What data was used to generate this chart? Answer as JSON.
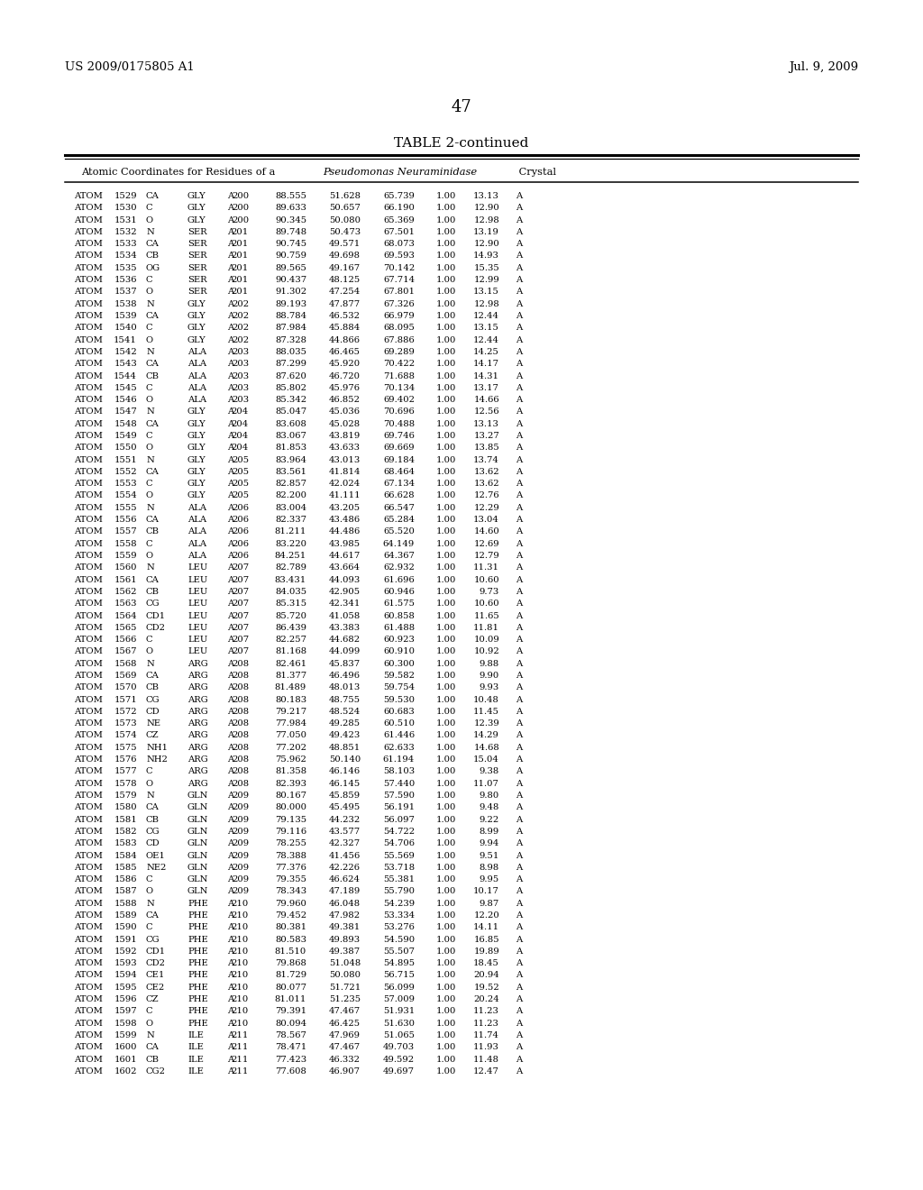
{
  "header_left": "US 2009/0175805 A1",
  "header_right": "Jul. 9, 2009",
  "page_number": "47",
  "table_title": "TABLE 2-continued",
  "rows": [
    [
      "ATOM",
      "1529",
      "CA",
      "GLY",
      "A",
      "200",
      "88.555",
      "51.628",
      "65.739",
      "1.00",
      "13.13",
      "A"
    ],
    [
      "ATOM",
      "1530",
      "C",
      "GLY",
      "A",
      "200",
      "89.633",
      "50.657",
      "66.190",
      "1.00",
      "12.90",
      "A"
    ],
    [
      "ATOM",
      "1531",
      "O",
      "GLY",
      "A",
      "200",
      "90.345",
      "50.080",
      "65.369",
      "1.00",
      "12.98",
      "A"
    ],
    [
      "ATOM",
      "1532",
      "N",
      "SER",
      "A",
      "201",
      "89.748",
      "50.473",
      "67.501",
      "1.00",
      "13.19",
      "A"
    ],
    [
      "ATOM",
      "1533",
      "CA",
      "SER",
      "A",
      "201",
      "90.745",
      "49.571",
      "68.073",
      "1.00",
      "12.90",
      "A"
    ],
    [
      "ATOM",
      "1534",
      "CB",
      "SER",
      "A",
      "201",
      "90.759",
      "49.698",
      "69.593",
      "1.00",
      "14.93",
      "A"
    ],
    [
      "ATOM",
      "1535",
      "OG",
      "SER",
      "A",
      "201",
      "89.565",
      "49.167",
      "70.142",
      "1.00",
      "15.35",
      "A"
    ],
    [
      "ATOM",
      "1536",
      "C",
      "SER",
      "A",
      "201",
      "90.437",
      "48.125",
      "67.714",
      "1.00",
      "12.99",
      "A"
    ],
    [
      "ATOM",
      "1537",
      "O",
      "SER",
      "A",
      "201",
      "91.302",
      "47.254",
      "67.801",
      "1.00",
      "13.15",
      "A"
    ],
    [
      "ATOM",
      "1538",
      "N",
      "GLY",
      "A",
      "202",
      "89.193",
      "47.877",
      "67.326",
      "1.00",
      "12.98",
      "A"
    ],
    [
      "ATOM",
      "1539",
      "CA",
      "GLY",
      "A",
      "202",
      "88.784",
      "46.532",
      "66.979",
      "1.00",
      "12.44",
      "A"
    ],
    [
      "ATOM",
      "1540",
      "C",
      "GLY",
      "A",
      "202",
      "87.984",
      "45.884",
      "68.095",
      "1.00",
      "13.15",
      "A"
    ],
    [
      "ATOM",
      "1541",
      "O",
      "GLY",
      "A",
      "202",
      "87.328",
      "44.866",
      "67.886",
      "1.00",
      "12.44",
      "A"
    ],
    [
      "ATOM",
      "1542",
      "N",
      "ALA",
      "A",
      "203",
      "88.035",
      "46.465",
      "69.289",
      "1.00",
      "14.25",
      "A"
    ],
    [
      "ATOM",
      "1543",
      "CA",
      "ALA",
      "A",
      "203",
      "87.299",
      "45.920",
      "70.422",
      "1.00",
      "14.17",
      "A"
    ],
    [
      "ATOM",
      "1544",
      "CB",
      "ALA",
      "A",
      "203",
      "87.620",
      "46.720",
      "71.688",
      "1.00",
      "14.31",
      "A"
    ],
    [
      "ATOM",
      "1545",
      "C",
      "ALA",
      "A",
      "203",
      "85.802",
      "45.976",
      "70.134",
      "1.00",
      "13.17",
      "A"
    ],
    [
      "ATOM",
      "1546",
      "O",
      "ALA",
      "A",
      "203",
      "85.342",
      "46.852",
      "69.402",
      "1.00",
      "14.66",
      "A"
    ],
    [
      "ATOM",
      "1547",
      "N",
      "GLY",
      "A",
      "204",
      "85.047",
      "45.036",
      "70.696",
      "1.00",
      "12.56",
      "A"
    ],
    [
      "ATOM",
      "1548",
      "CA",
      "GLY",
      "A",
      "204",
      "83.608",
      "45.028",
      "70.488",
      "1.00",
      "13.13",
      "A"
    ],
    [
      "ATOM",
      "1549",
      "C",
      "GLY",
      "A",
      "204",
      "83.067",
      "43.819",
      "69.746",
      "1.00",
      "13.27",
      "A"
    ],
    [
      "ATOM",
      "1550",
      "O",
      "GLY",
      "A",
      "204",
      "81.853",
      "43.633",
      "69.669",
      "1.00",
      "13.85",
      "A"
    ],
    [
      "ATOM",
      "1551",
      "N",
      "GLY",
      "A",
      "205",
      "83.964",
      "43.013",
      "69.184",
      "1.00",
      "13.74",
      "A"
    ],
    [
      "ATOM",
      "1552",
      "CA",
      "GLY",
      "A",
      "205",
      "83.561",
      "41.814",
      "68.464",
      "1.00",
      "13.62",
      "A"
    ],
    [
      "ATOM",
      "1553",
      "C",
      "GLY",
      "A",
      "205",
      "82.857",
      "42.024",
      "67.134",
      "1.00",
      "13.62",
      "A"
    ],
    [
      "ATOM",
      "1554",
      "O",
      "GLY",
      "A",
      "205",
      "82.200",
      "41.111",
      "66.628",
      "1.00",
      "12.76",
      "A"
    ],
    [
      "ATOM",
      "1555",
      "N",
      "ALA",
      "A",
      "206",
      "83.004",
      "43.205",
      "66.547",
      "1.00",
      "12.29",
      "A"
    ],
    [
      "ATOM",
      "1556",
      "CA",
      "ALA",
      "A",
      "206",
      "82.337",
      "43.486",
      "65.284",
      "1.00",
      "13.04",
      "A"
    ],
    [
      "ATOM",
      "1557",
      "CB",
      "ALA",
      "A",
      "206",
      "81.211",
      "44.486",
      "65.520",
      "1.00",
      "14.60",
      "A"
    ],
    [
      "ATOM",
      "1558",
      "C",
      "ALA",
      "A",
      "206",
      "83.220",
      "43.985",
      "64.149",
      "1.00",
      "12.69",
      "A"
    ],
    [
      "ATOM",
      "1559",
      "O",
      "ALA",
      "A",
      "206",
      "84.251",
      "44.617",
      "64.367",
      "1.00",
      "12.79",
      "A"
    ],
    [
      "ATOM",
      "1560",
      "N",
      "LEU",
      "A",
      "207",
      "82.789",
      "43.664",
      "62.932",
      "1.00",
      "11.31",
      "A"
    ],
    [
      "ATOM",
      "1561",
      "CA",
      "LEU",
      "A",
      "207",
      "83.431",
      "44.093",
      "61.696",
      "1.00",
      "10.60",
      "A"
    ],
    [
      "ATOM",
      "1562",
      "CB",
      "LEU",
      "A",
      "207",
      "84.035",
      "42.905",
      "60.946",
      "1.00",
      "9.73",
      "A"
    ],
    [
      "ATOM",
      "1563",
      "CG",
      "LEU",
      "A",
      "207",
      "85.315",
      "42.341",
      "61.575",
      "1.00",
      "10.60",
      "A"
    ],
    [
      "ATOM",
      "1564",
      "CD1",
      "LEU",
      "A",
      "207",
      "85.720",
      "41.058",
      "60.858",
      "1.00",
      "11.65",
      "A"
    ],
    [
      "ATOM",
      "1565",
      "CD2",
      "LEU",
      "A",
      "207",
      "86.439",
      "43.383",
      "61.488",
      "1.00",
      "11.81",
      "A"
    ],
    [
      "ATOM",
      "1566",
      "C",
      "LEU",
      "A",
      "207",
      "82.257",
      "44.682",
      "60.923",
      "1.00",
      "10.09",
      "A"
    ],
    [
      "ATOM",
      "1567",
      "O",
      "LEU",
      "A",
      "207",
      "81.168",
      "44.099",
      "60.910",
      "1.00",
      "10.92",
      "A"
    ],
    [
      "ATOM",
      "1568",
      "N",
      "ARG",
      "A",
      "208",
      "82.461",
      "45.837",
      "60.300",
      "1.00",
      "9.88",
      "A"
    ],
    [
      "ATOM",
      "1569",
      "CA",
      "ARG",
      "A",
      "208",
      "81.377",
      "46.496",
      "59.582",
      "1.00",
      "9.90",
      "A"
    ],
    [
      "ATOM",
      "1570",
      "CB",
      "ARG",
      "A",
      "208",
      "81.489",
      "48.013",
      "59.754",
      "1.00",
      "9.93",
      "A"
    ],
    [
      "ATOM",
      "1571",
      "CG",
      "ARG",
      "A",
      "208",
      "80.183",
      "48.755",
      "59.530",
      "1.00",
      "10.48",
      "A"
    ],
    [
      "ATOM",
      "1572",
      "CD",
      "ARG",
      "A",
      "208",
      "79.217",
      "48.524",
      "60.683",
      "1.00",
      "11.45",
      "A"
    ],
    [
      "ATOM",
      "1573",
      "NE",
      "ARG",
      "A",
      "208",
      "77.984",
      "49.285",
      "60.510",
      "1.00",
      "12.39",
      "A"
    ],
    [
      "ATOM",
      "1574",
      "CZ",
      "ARG",
      "A",
      "208",
      "77.050",
      "49.423",
      "61.446",
      "1.00",
      "14.29",
      "A"
    ],
    [
      "ATOM",
      "1575",
      "NH1",
      "ARG",
      "A",
      "208",
      "77.202",
      "48.851",
      "62.633",
      "1.00",
      "14.68",
      "A"
    ],
    [
      "ATOM",
      "1576",
      "NH2",
      "ARG",
      "A",
      "208",
      "75.962",
      "50.140",
      "61.194",
      "1.00",
      "15.04",
      "A"
    ],
    [
      "ATOM",
      "1577",
      "C",
      "ARG",
      "A",
      "208",
      "81.358",
      "46.146",
      "58.103",
      "1.00",
      "9.38",
      "A"
    ],
    [
      "ATOM",
      "1578",
      "O",
      "ARG",
      "A",
      "208",
      "82.393",
      "46.145",
      "57.440",
      "1.00",
      "11.07",
      "A"
    ],
    [
      "ATOM",
      "1579",
      "N",
      "GLN",
      "A",
      "209",
      "80.167",
      "45.859",
      "57.590",
      "1.00",
      "9.80",
      "A"
    ],
    [
      "ATOM",
      "1580",
      "CA",
      "GLN",
      "A",
      "209",
      "80.000",
      "45.495",
      "56.191",
      "1.00",
      "9.48",
      "A"
    ],
    [
      "ATOM",
      "1581",
      "CB",
      "GLN",
      "A",
      "209",
      "79.135",
      "44.232",
      "56.097",
      "1.00",
      "9.22",
      "A"
    ],
    [
      "ATOM",
      "1582",
      "CG",
      "GLN",
      "A",
      "209",
      "79.116",
      "43.577",
      "54.722",
      "1.00",
      "8.99",
      "A"
    ],
    [
      "ATOM",
      "1583",
      "CD",
      "GLN",
      "A",
      "209",
      "78.255",
      "42.327",
      "54.706",
      "1.00",
      "9.94",
      "A"
    ],
    [
      "ATOM",
      "1584",
      "OE1",
      "GLN",
      "A",
      "209",
      "78.388",
      "41.456",
      "55.569",
      "1.00",
      "9.51",
      "A"
    ],
    [
      "ATOM",
      "1585",
      "NE2",
      "GLN",
      "A",
      "209",
      "77.376",
      "42.226",
      "53.718",
      "1.00",
      "8.98",
      "A"
    ],
    [
      "ATOM",
      "1586",
      "C",
      "GLN",
      "A",
      "209",
      "79.355",
      "46.624",
      "55.381",
      "1.00",
      "9.95",
      "A"
    ],
    [
      "ATOM",
      "1587",
      "O",
      "GLN",
      "A",
      "209",
      "78.343",
      "47.189",
      "55.790",
      "1.00",
      "10.17",
      "A"
    ],
    [
      "ATOM",
      "1588",
      "N",
      "PHE",
      "A",
      "210",
      "79.960",
      "46.048",
      "54.239",
      "1.00",
      "9.87",
      "A"
    ],
    [
      "ATOM",
      "1589",
      "CA",
      "PHE",
      "A",
      "210",
      "79.452",
      "47.982",
      "53.334",
      "1.00",
      "12.20",
      "A"
    ],
    [
      "ATOM",
      "1590",
      "C",
      "PHE",
      "A",
      "210",
      "80.381",
      "49.381",
      "53.276",
      "1.00",
      "14.11",
      "A"
    ],
    [
      "ATOM",
      "1591",
      "CG",
      "PHE",
      "A",
      "210",
      "80.583",
      "49.893",
      "54.590",
      "1.00",
      "16.85",
      "A"
    ],
    [
      "ATOM",
      "1592",
      "CD1",
      "PHE",
      "A",
      "210",
      "81.510",
      "49.387",
      "55.507",
      "1.00",
      "19.89",
      "A"
    ],
    [
      "ATOM",
      "1593",
      "CD2",
      "PHE",
      "A",
      "210",
      "79.868",
      "51.048",
      "54.895",
      "1.00",
      "18.45",
      "A"
    ],
    [
      "ATOM",
      "1594",
      "CE1",
      "PHE",
      "A",
      "210",
      "81.729",
      "50.080",
      "56.715",
      "1.00",
      "20.94",
      "A"
    ],
    [
      "ATOM",
      "1595",
      "CE2",
      "PHE",
      "A",
      "210",
      "80.077",
      "51.721",
      "56.099",
      "1.00",
      "19.52",
      "A"
    ],
    [
      "ATOM",
      "1596",
      "CZ",
      "PHE",
      "A",
      "210",
      "81.011",
      "51.235",
      "57.009",
      "1.00",
      "20.24",
      "A"
    ],
    [
      "ATOM",
      "1597",
      "C",
      "PHE",
      "A",
      "210",
      "79.391",
      "47.467",
      "51.931",
      "1.00",
      "11.23",
      "A"
    ],
    [
      "ATOM",
      "1598",
      "O",
      "PHE",
      "A",
      "210",
      "80.094",
      "46.425",
      "51.630",
      "1.00",
      "11.23",
      "A"
    ],
    [
      "ATOM",
      "1599",
      "N",
      "ILE",
      "A",
      "211",
      "78.567",
      "47.969",
      "51.065",
      "1.00",
      "11.74",
      "A"
    ],
    [
      "ATOM",
      "1600",
      "CA",
      "ILE",
      "A",
      "211",
      "78.471",
      "47.467",
      "49.703",
      "1.00",
      "11.93",
      "A"
    ],
    [
      "ATOM",
      "1601",
      "CB",
      "ILE",
      "A",
      "211",
      "77.423",
      "46.332",
      "49.592",
      "1.00",
      "11.48",
      "A"
    ],
    [
      "ATOM",
      "1602",
      "CG2",
      "ILE",
      "A",
      "211",
      "77.608",
      "46.907",
      "49.697",
      "1.00",
      "12.47",
      "A"
    ]
  ],
  "background_color": "#ffffff",
  "text_color": "#000000",
  "font_size": 7.2,
  "header_font_size": 9.5,
  "title_font_size": 11,
  "subtitle_font_size": 8.2
}
